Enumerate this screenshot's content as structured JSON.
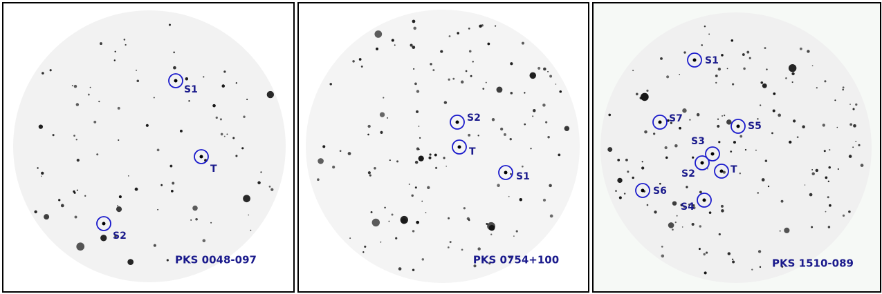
{
  "panels": [
    {
      "title": "PKS 0048-097",
      "markers": [
        "S1",
        "T",
        "S2"
      ]
    },
    {
      "title": "PKS 0754+100",
      "markers": [
        "S2",
        "T",
        "S1"
      ]
    },
    {
      "title": "PKS 1510-089",
      "markers": [
        "S1",
        "S7",
        "S5",
        "S3",
        "S2",
        "T",
        "S6",
        "S4"
      ]
    }
  ]
}
